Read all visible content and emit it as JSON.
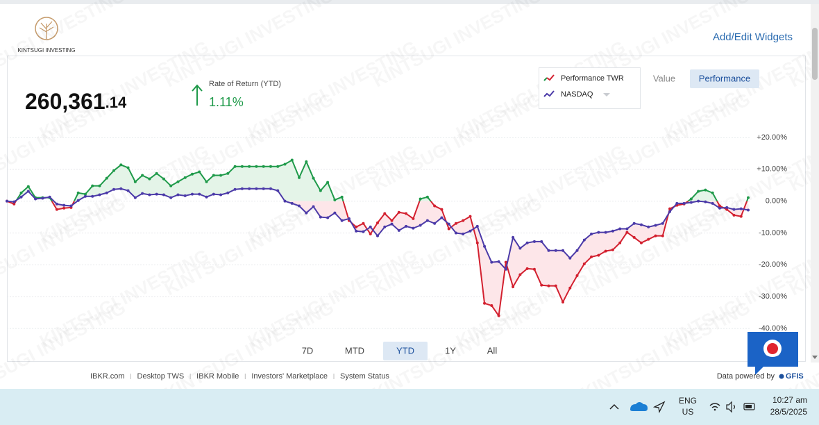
{
  "header": {
    "logo_text": "KINTSUGI INVESTING",
    "add_edit": "Add/Edit Widgets",
    "watermark": "KINTSUGI INVESTING"
  },
  "summary": {
    "value_main": "260,361",
    "value_decimal": ".14",
    "rate_label": "Rate of Return (YTD)",
    "rate_value": "1.11%"
  },
  "toggle": {
    "options": [
      "Value",
      "Performance"
    ],
    "active": "Performance"
  },
  "periods": {
    "options": [
      "7D",
      "MTD",
      "YTD",
      "1Y",
      "All"
    ],
    "active": "YTD"
  },
  "chart_data": {
    "type": "line",
    "ylim": [
      -40,
      20
    ],
    "yticks": [
      {
        "value": 20,
        "label": "+20.00%"
      },
      {
        "value": 10,
        "label": "+10.00%"
      },
      {
        "value": 0,
        "label": "0.00%"
      },
      {
        "value": -10,
        "label": "-10.00%"
      },
      {
        "value": -20,
        "label": "-20.00%"
      },
      {
        "value": -30,
        "label": "-30.00%"
      },
      {
        "value": -40,
        "label": "-40.00%"
      }
    ],
    "grid": true,
    "positive_fill": "#e4f4e8",
    "negative_fill": "#fde6e9",
    "series": [
      {
        "name": "Performance TWR",
        "color": "#d3202f",
        "positive_color": "#1f9a4a",
        "values": [
          0,
          -0.9,
          2.6,
          4.6,
          1.1,
          1.1,
          1.1,
          -2.6,
          -2.2,
          -2.0,
          2.6,
          2.2,
          4.8,
          4.8,
          7.2,
          9.6,
          11.4,
          10.5,
          6.1,
          8.1,
          7.0,
          8.7,
          7.0,
          4.8,
          6.1,
          7.4,
          8.5,
          9.2,
          6.1,
          8.1,
          8.1,
          8.7,
          10.9,
          10.9,
          10.9,
          10.9,
          10.9,
          10.9,
          10.9,
          11.6,
          12.9,
          7.4,
          12.4,
          7.2,
          3.3,
          5.9,
          0.4,
          1.3,
          -6.1,
          -8.1,
          -7.0,
          -10.3,
          -6.8,
          -3.9,
          -6.1,
          -3.5,
          -3.9,
          -5.5,
          0.7,
          1.3,
          -1.5,
          -2.6,
          -8.7,
          -7.0,
          -6.1,
          -4.8,
          -13.1,
          -32.1,
          -32.8,
          -36.0,
          -19.2,
          -26.9,
          -23.1,
          -21.2,
          -21.4,
          -26.4,
          -26.6,
          -26.6,
          -31.7,
          -27.3,
          -23.4,
          -19.7,
          -17.5,
          -17.0,
          -15.7,
          -15.3,
          -13.1,
          -9.8,
          -11.4,
          -13.1,
          -12.0,
          -10.9,
          -10.9,
          -2.4,
          -1.3,
          -0.9,
          0.7,
          3.1,
          3.5,
          2.6,
          -1.5,
          -2.6,
          -4.4,
          -4.8,
          1.1
        ]
      },
      {
        "name": "NASDAQ",
        "color": "#4b3aa8",
        "values": [
          0,
          -0.2,
          1.3,
          3.1,
          0.7,
          0.9,
          1.3,
          -0.9,
          -1.3,
          -1.5,
          0.2,
          1.5,
          1.5,
          2.0,
          2.6,
          3.7,
          3.9,
          3.3,
          1.1,
          2.4,
          2.0,
          2.2,
          2.0,
          1.1,
          2.0,
          1.7,
          2.2,
          2.2,
          1.3,
          2.2,
          2.0,
          2.6,
          3.7,
          3.9,
          3.9,
          3.9,
          3.9,
          3.9,
          3.3,
          0,
          -0.7,
          -1.5,
          -3.7,
          -1.7,
          -5.0,
          -5.2,
          -3.7,
          -6.1,
          -5.5,
          -9.4,
          -9.6,
          -8.1,
          -10.9,
          -8.1,
          -7.2,
          -9.2,
          -7.9,
          -8.5,
          -7.6,
          -6.1,
          -7.0,
          -5.2,
          -7.2,
          -10.0,
          -10.3,
          -9.4,
          -7.9,
          -14.2,
          -19.2,
          -19.0,
          -21.4,
          -11.4,
          -14.8,
          -13.1,
          -12.7,
          -12.7,
          -15.5,
          -15.5,
          -15.5,
          -17.9,
          -15.5,
          -12.2,
          -10.3,
          -9.8,
          -9.8,
          -9.4,
          -8.7,
          -8.7,
          -7.0,
          -7.4,
          -8.1,
          -7.6,
          -7.0,
          -3.3,
          -0.7,
          -0.7,
          -0.4,
          0,
          -0.2,
          -0.7,
          -2.2,
          -2.0,
          -2.6,
          -2.4,
          -2.8
        ]
      }
    ]
  },
  "footer": {
    "links": [
      "IBKR.com",
      "Desktop TWS",
      "IBKR Mobile",
      "Investors' Marketplace",
      "System Status"
    ],
    "powered": "Data powered by",
    "provider": "GFIS"
  },
  "taskbar": {
    "lang1": "ENG",
    "lang2": "US",
    "time": "10:27 am",
    "date": "28/5/2025"
  }
}
